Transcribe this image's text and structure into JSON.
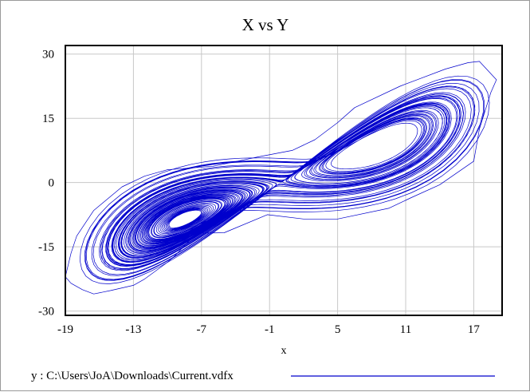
{
  "chart_data": {
    "type": "line",
    "title": "X vs Y",
    "xlabel": "x",
    "ylabel": "",
    "xlim": [
      -19,
      19.5
    ],
    "ylim": [
      -31,
      32
    ],
    "x_ticks": [
      -19,
      -13,
      -7,
      -1,
      5,
      11,
      17
    ],
    "y_ticks": [
      30,
      15,
      0,
      -15,
      -30
    ],
    "grid": true,
    "legend_position": "bottom-left",
    "series": [
      {
        "name": "y : C:\\Users\\JoA\\Downloads\\Current.vdfx",
        "color": "#0000cc",
        "model": "lorenz-attractor",
        "params": {
          "sigma": 10,
          "rho": 28,
          "beta": 2.6667,
          "dt": 0.01
        },
        "initial_point": [
          1,
          1,
          1
        ],
        "outer_hull": [
          [
            -17.5,
            -25
          ],
          [
            -16.5,
            -26
          ],
          [
            -15,
            -25.2
          ],
          [
            -13,
            -24
          ],
          [
            -12,
            -22.5
          ],
          [
            -10.2,
            -19
          ],
          [
            -9.5,
            -17.5
          ],
          [
            -7.5,
            -12
          ],
          [
            -7,
            -11.8
          ],
          [
            -5,
            -11.7
          ],
          [
            -1.2,
            -7.5
          ],
          [
            2,
            -8.5
          ],
          [
            5,
            -8.5
          ],
          [
            9.5,
            -6
          ],
          [
            11.5,
            -3.5
          ],
          [
            14,
            -0.5
          ],
          [
            17,
            5
          ],
          [
            17.5,
            12.5
          ],
          [
            18.5,
            21
          ],
          [
            19,
            24
          ],
          [
            17.5,
            28.3
          ],
          [
            16.5,
            28
          ],
          [
            14.5,
            26.5
          ],
          [
            12,
            24
          ],
          [
            10.5,
            22.5
          ],
          [
            6.5,
            17.5
          ],
          [
            5,
            14
          ],
          [
            3,
            10
          ],
          [
            1,
            7.5
          ],
          [
            -2,
            6
          ],
          [
            -6,
            3.8
          ],
          [
            -10,
            3
          ],
          [
            -12,
            1.5
          ],
          [
            -14,
            -1
          ],
          [
            -16.5,
            -6.5
          ],
          [
            -18,
            -12.5
          ],
          [
            -18.5,
            -16.5
          ],
          [
            -19,
            -22
          ],
          [
            -18.5,
            -23.5
          ]
        ]
      }
    ]
  }
}
